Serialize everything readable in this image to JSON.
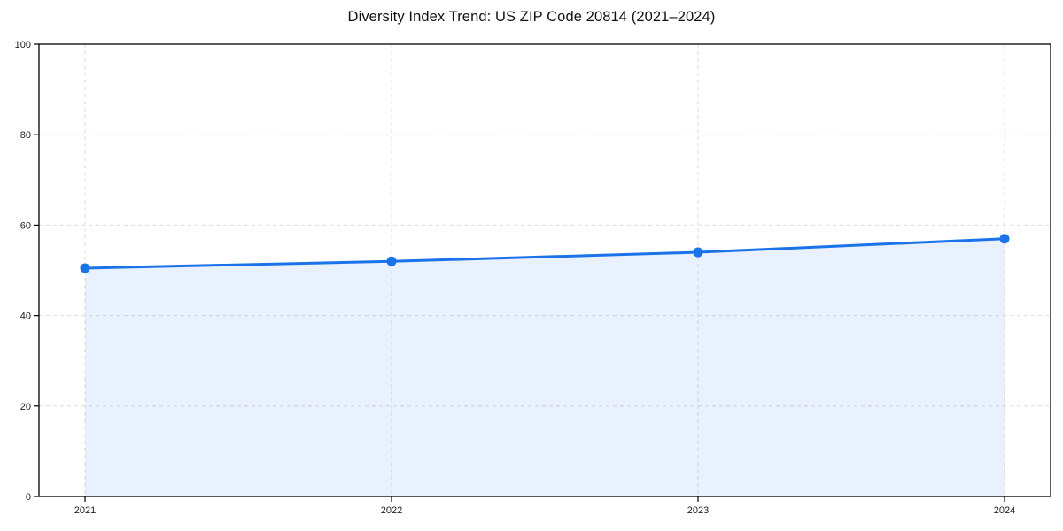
{
  "page": {
    "background": "#ffffff"
  },
  "chart_data": {
    "type": "area",
    "title": "Diversity Index Trend: US ZIP Code 20814 (2021–2024)",
    "categories": [
      "2021",
      "2022",
      "2023",
      "2024"
    ],
    "values": [
      50.5,
      52,
      54,
      57
    ],
    "xlabel": "",
    "ylabel": "",
    "ylim": [
      0,
      100
    ],
    "yticks": [
      0,
      20,
      40,
      60,
      80,
      100
    ],
    "grid": {
      "show": true,
      "style": "dashed",
      "color": "#dcdcdc"
    },
    "legend": {
      "show": false
    },
    "line_color": "#1a73e8",
    "fill_opacity": 0.1,
    "marker": "circle",
    "axis_color": "#000000",
    "tick_label_color": "#222222"
  }
}
